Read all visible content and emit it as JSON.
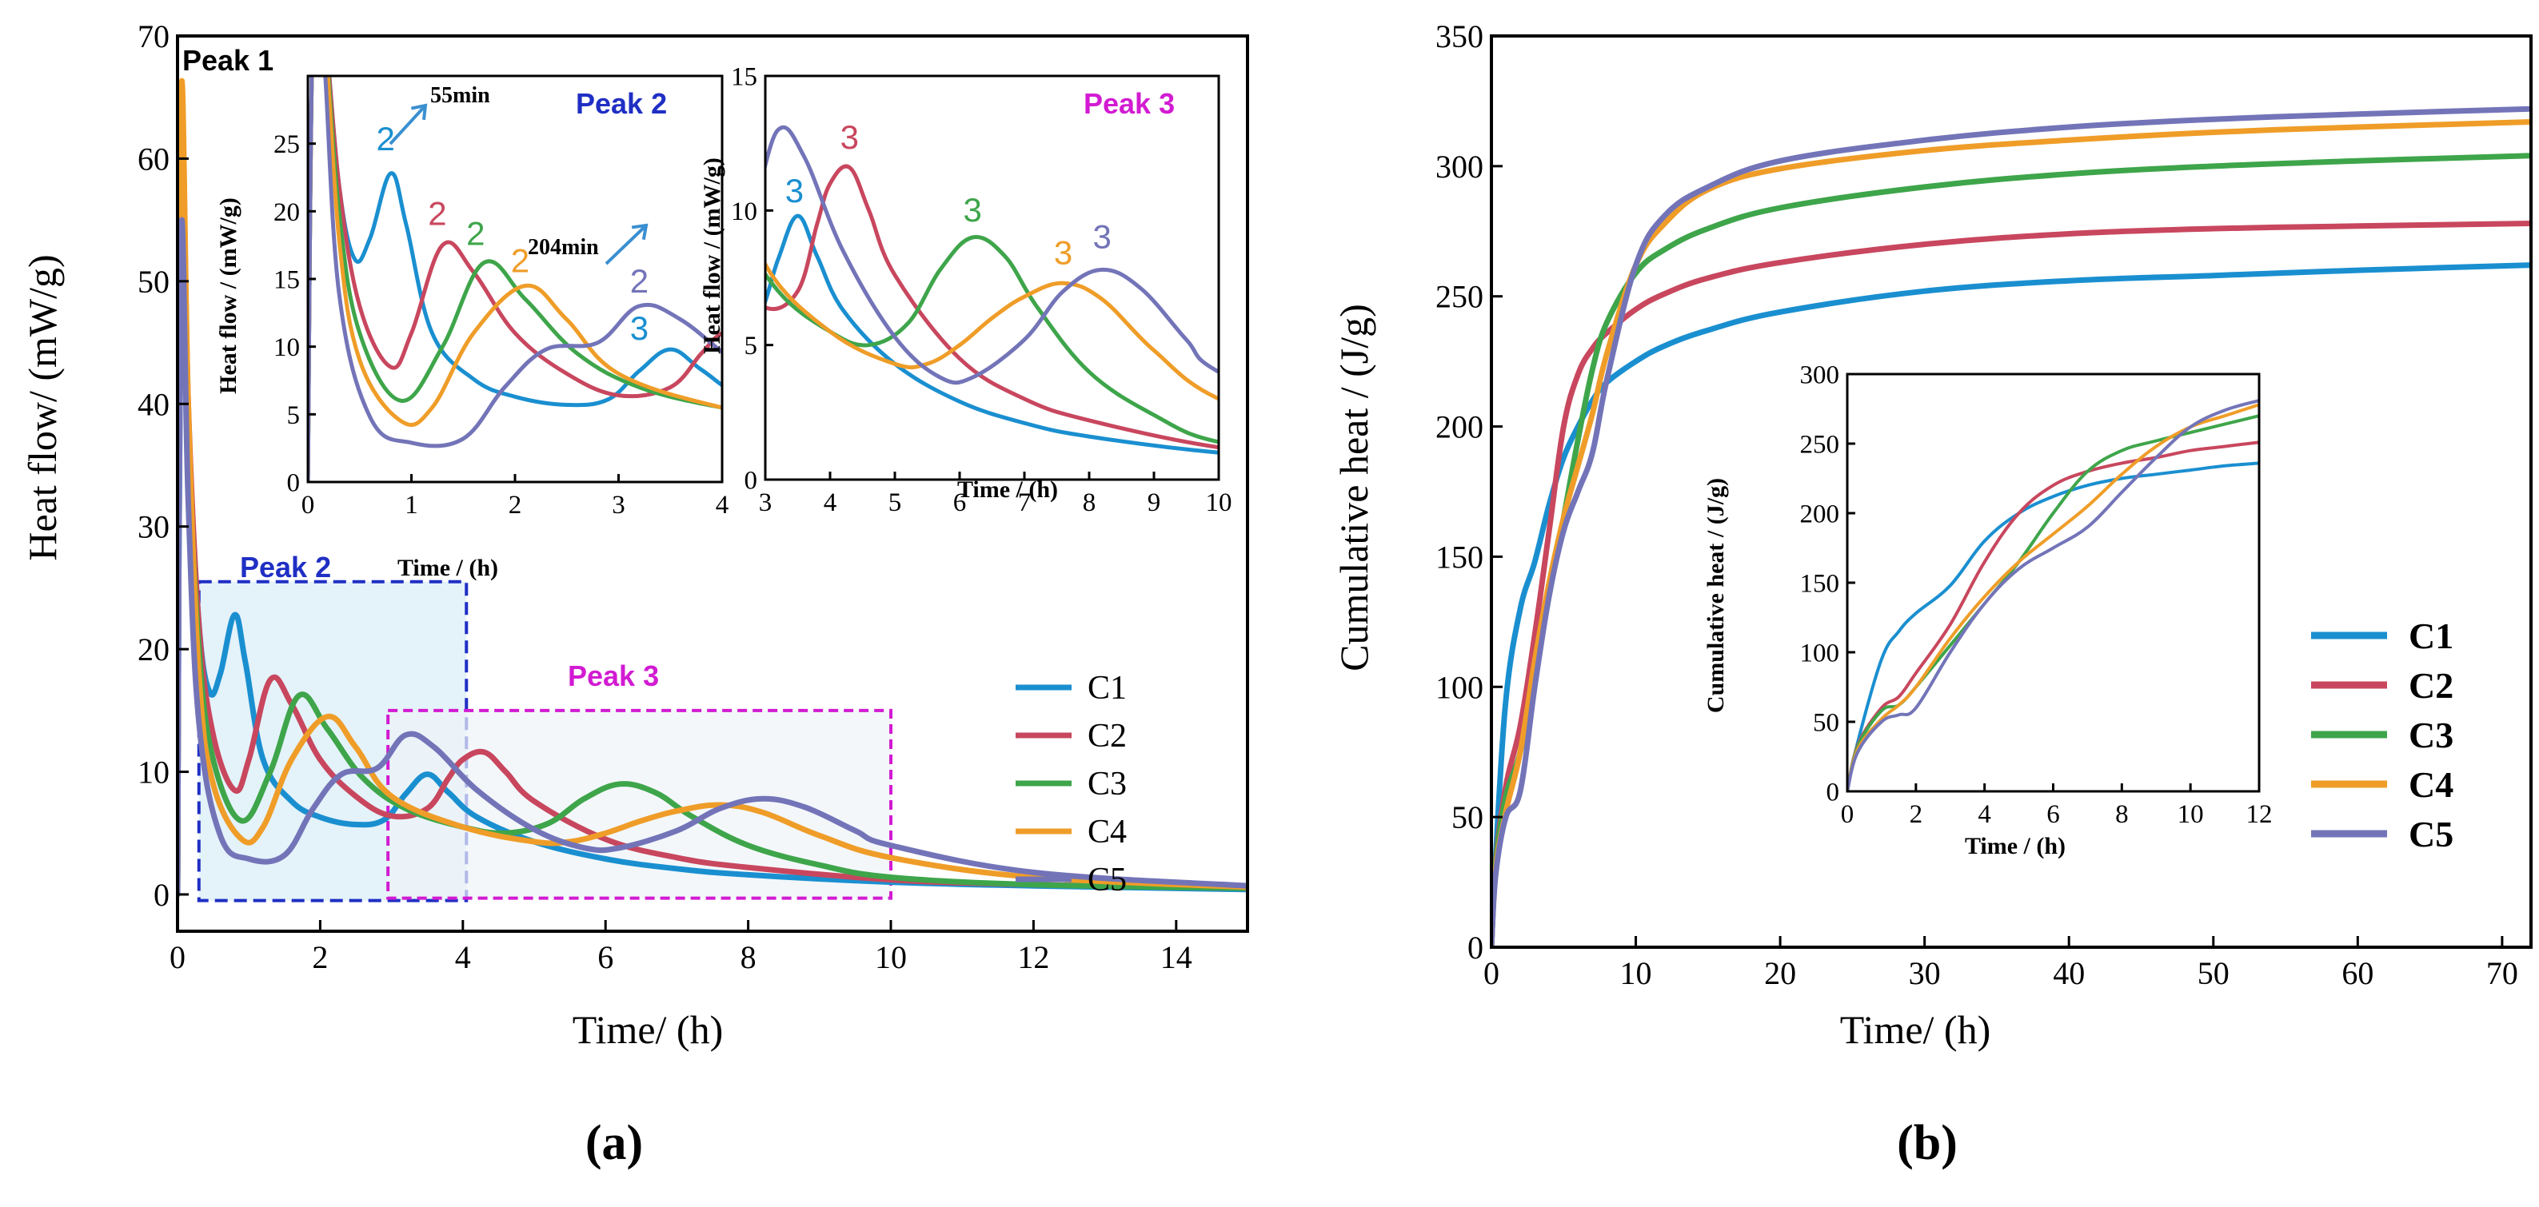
{
  "colors": {
    "C1": "#1a8fd0",
    "C2": "#c8475e",
    "C3": "#3ea54a",
    "C4": "#ef9d28",
    "C5": "#7374b8",
    "peak2_box": "#1f2fc4",
    "peak3_box": "#d21bd2"
  },
  "chart_data": [
    {
      "id": "a-main",
      "type": "line",
      "panel_label": "(a)",
      "xlabel": "Time/ (h)",
      "ylabel": "Heat flow/ (mW/g)",
      "xlim": [
        0,
        15
      ],
      "ylim": [
        0,
        70
      ],
      "xticks": [
        0,
        2,
        4,
        6,
        8,
        10,
        12,
        14
      ],
      "yticks": [
        0,
        10,
        20,
        30,
        40,
        50,
        60,
        70
      ],
      "legend": [
        "C1",
        "C2",
        "C3",
        "C4",
        "C5"
      ],
      "legend_position": "center-right",
      "annotations": {
        "peak1": "Peak 1",
        "peak2": "Peak 2",
        "peak3": "Peak 3"
      },
      "regions": [
        {
          "name": "Peak 2",
          "x": [
            0.3,
            4.05
          ],
          "y": [
            -0.5,
            25.5
          ]
        },
        {
          "name": "Peak 3",
          "x": [
            2.95,
            10.0
          ],
          "y": [
            -0.3,
            15.0
          ]
        }
      ],
      "series": [
        {
          "name": "C1",
          "x": [
            0,
            0.05,
            0.15,
            0.3,
            0.45,
            0.6,
            0.8,
            0.95,
            1.2,
            1.6,
            2.0,
            2.5,
            2.9,
            3.2,
            3.5,
            3.8,
            4.2,
            5,
            6,
            7,
            8,
            10,
            12,
            15
          ],
          "values": [
            0,
            54,
            38,
            22,
            16.5,
            18,
            22.8,
            19,
            11,
            7.6,
            6.3,
            5.7,
            6.1,
            8.2,
            9.8,
            8.3,
            6.3,
            4.3,
            2.9,
            2.1,
            1.6,
            1.0,
            0.7,
            0.4
          ]
        },
        {
          "name": "C2",
          "x": [
            0,
            0.05,
            0.15,
            0.3,
            0.5,
            0.8,
            1.0,
            1.3,
            1.6,
            2.0,
            2.5,
            3.0,
            3.5,
            3.8,
            4.0,
            4.3,
            4.6,
            5,
            6,
            7,
            8,
            10,
            12,
            15
          ],
          "values": [
            0,
            63,
            40,
            22,
            13,
            8.5,
            11,
            17.5,
            15.5,
            11,
            8,
            6.4,
            7,
            9.5,
            11,
            11.6,
            10,
            7.6,
            4.5,
            3,
            2.2,
            1.2,
            0.8,
            0.5
          ]
        },
        {
          "name": "C3",
          "x": [
            0,
            0.05,
            0.15,
            0.3,
            0.5,
            0.9,
            1.3,
            1.7,
            2.1,
            2.6,
            3.2,
            4.0,
            4.6,
            5.2,
            5.7,
            6.2,
            6.7,
            7.2,
            8,
            9,
            10,
            12,
            15
          ],
          "values": [
            0,
            63,
            38,
            20,
            11,
            6,
            10,
            16.2,
            13.5,
            9.5,
            7,
            5.5,
            5,
            5.8,
            7.8,
            9,
            8.3,
            6.4,
            4,
            2.4,
            1.4,
            0.8,
            0.5
          ]
        },
        {
          "name": "C4",
          "x": [
            0,
            0.05,
            0.15,
            0.3,
            0.5,
            0.9,
            1.2,
            1.6,
            2.1,
            2.5,
            3.0,
            4.0,
            5,
            5.5,
            6,
            6.5,
            7,
            7.6,
            8.2,
            9,
            10,
            12,
            15
          ],
          "values": [
            0,
            65,
            40,
            18,
            9,
            4.5,
            5.5,
            11,
            14.5,
            12,
            8,
            5.5,
            4.3,
            4.3,
            5,
            6,
            6.8,
            7.3,
            6.7,
            4.8,
            3,
            1.4,
            0.6
          ]
        },
        {
          "name": "C5",
          "x": [
            0,
            0.05,
            0.15,
            0.3,
            0.6,
            1.0,
            1.5,
            1.9,
            2.3,
            2.8,
            3.2,
            3.6,
            4.2,
            5,
            5.7,
            6.2,
            7,
            7.6,
            8.2,
            8.8,
            9.5,
            10,
            12,
            15
          ],
          "values": [
            0,
            54,
            32,
            14,
            4.8,
            2.9,
            3.2,
            7,
            9.8,
            10.3,
            13,
            12,
            8.5,
            5.3,
            3.8,
            3.8,
            5.2,
            7,
            7.8,
            7.1,
            5.2,
            4,
            1.8,
            0.7
          ]
        }
      ]
    },
    {
      "id": "a-inset-peak2",
      "type": "line",
      "xlabel": "Time / (h)",
      "ylabel": "Heat flow / (mW/g)",
      "xlim": [
        0,
        4
      ],
      "ylim": [
        0,
        30
      ],
      "xticks": [
        0,
        1,
        2,
        3,
        4
      ],
      "yticks": [
        0,
        5,
        10,
        15,
        20,
        25
      ],
      "title": "Peak 2",
      "annotations": {
        "t1": "55min",
        "t2": "204min",
        "num": "2",
        "num3": "3"
      },
      "series_ref": "a-main"
    },
    {
      "id": "a-inset-peak3",
      "type": "line",
      "xlabel": "Time / (h)",
      "ylabel": "Heat flow / (mW/g)",
      "xlim": [
        3,
        10
      ],
      "ylim": [
        0,
        15
      ],
      "xticks": [
        3,
        4,
        5,
        6,
        7,
        8,
        9,
        10
      ],
      "yticks": [
        0,
        5,
        10,
        15
      ],
      "title": "Peak 3",
      "annotations": {
        "num": "3"
      },
      "series_ref": "a-main"
    },
    {
      "id": "b-main",
      "type": "line",
      "panel_label": "(b)",
      "xlabel": "Time/ (h)",
      "ylabel": "Cumulative heat / (J/g)",
      "xlim": [
        0,
        72
      ],
      "ylim": [
        0,
        350
      ],
      "xticks": [
        0,
        10,
        20,
        30,
        40,
        50,
        60,
        70
      ],
      "yticks": [
        0,
        50,
        100,
        150,
        200,
        250,
        300,
        350
      ],
      "legend": [
        "C1",
        "C2",
        "C3",
        "C4",
        "C5"
      ],
      "legend_position": "lower-right",
      "series": [
        {
          "name": "C1",
          "x": [
            0,
            0.3,
            1,
            2,
            3,
            4,
            5,
            6,
            7,
            8,
            10,
            12,
            15,
            20,
            30,
            40,
            50,
            60,
            72
          ],
          "values": [
            0,
            35,
            95,
            130,
            148,
            170,
            188,
            200,
            210,
            217,
            225,
            231,
            237,
            244,
            252,
            256,
            258,
            260,
            262
          ]
        },
        {
          "name": "C2",
          "x": [
            0,
            0.3,
            1,
            2,
            3,
            4,
            5,
            6,
            7,
            8,
            10,
            12,
            15,
            20,
            30,
            40,
            50,
            60,
            72
          ],
          "values": [
            0,
            33,
            62,
            85,
            120,
            160,
            200,
            220,
            230,
            236,
            245,
            251,
            257,
            263,
            270,
            274,
            276,
            277,
            278
          ]
        },
        {
          "name": "C3",
          "x": [
            0,
            0.3,
            1,
            2,
            3,
            4,
            5,
            6,
            7,
            8,
            10,
            12,
            15,
            20,
            30,
            40,
            50,
            60,
            72
          ],
          "values": [
            0,
            32,
            58,
            75,
            105,
            135,
            165,
            195,
            222,
            240,
            259,
            268,
            276,
            284,
            292,
            297,
            300,
            302,
            304
          ]
        },
        {
          "name": "C4",
          "x": [
            0,
            0.3,
            1,
            2,
            3,
            4,
            5,
            6,
            7,
            8,
            10,
            12,
            15,
            20,
            30,
            40,
            50,
            60,
            72
          ],
          "values": [
            0,
            30,
            52,
            75,
            110,
            140,
            165,
            185,
            205,
            228,
            262,
            278,
            291,
            299,
            306,
            310,
            313,
            315,
            317
          ]
        },
        {
          "name": "C5",
          "x": [
            0,
            0.3,
            1,
            2,
            3,
            4,
            5,
            6,
            7,
            8,
            10,
            12,
            15,
            20,
            30,
            40,
            50,
            60,
            72
          ],
          "values": [
            0,
            28,
            50,
            60,
            100,
            135,
            160,
            175,
            190,
            218,
            262,
            281,
            292,
            302,
            310,
            315,
            318,
            320,
            322
          ]
        }
      ]
    },
    {
      "id": "b-inset",
      "type": "line",
      "xlabel": "Time / (h)",
      "ylabel": "Cumulative heat / (J/g)",
      "xlim": [
        0,
        12
      ],
      "ylim": [
        0,
        300
      ],
      "xticks": [
        0,
        2,
        4,
        6,
        8,
        10,
        12
      ],
      "yticks": [
        0,
        50,
        100,
        150,
        200,
        250,
        300
      ],
      "series_ref": "b-main"
    }
  ]
}
